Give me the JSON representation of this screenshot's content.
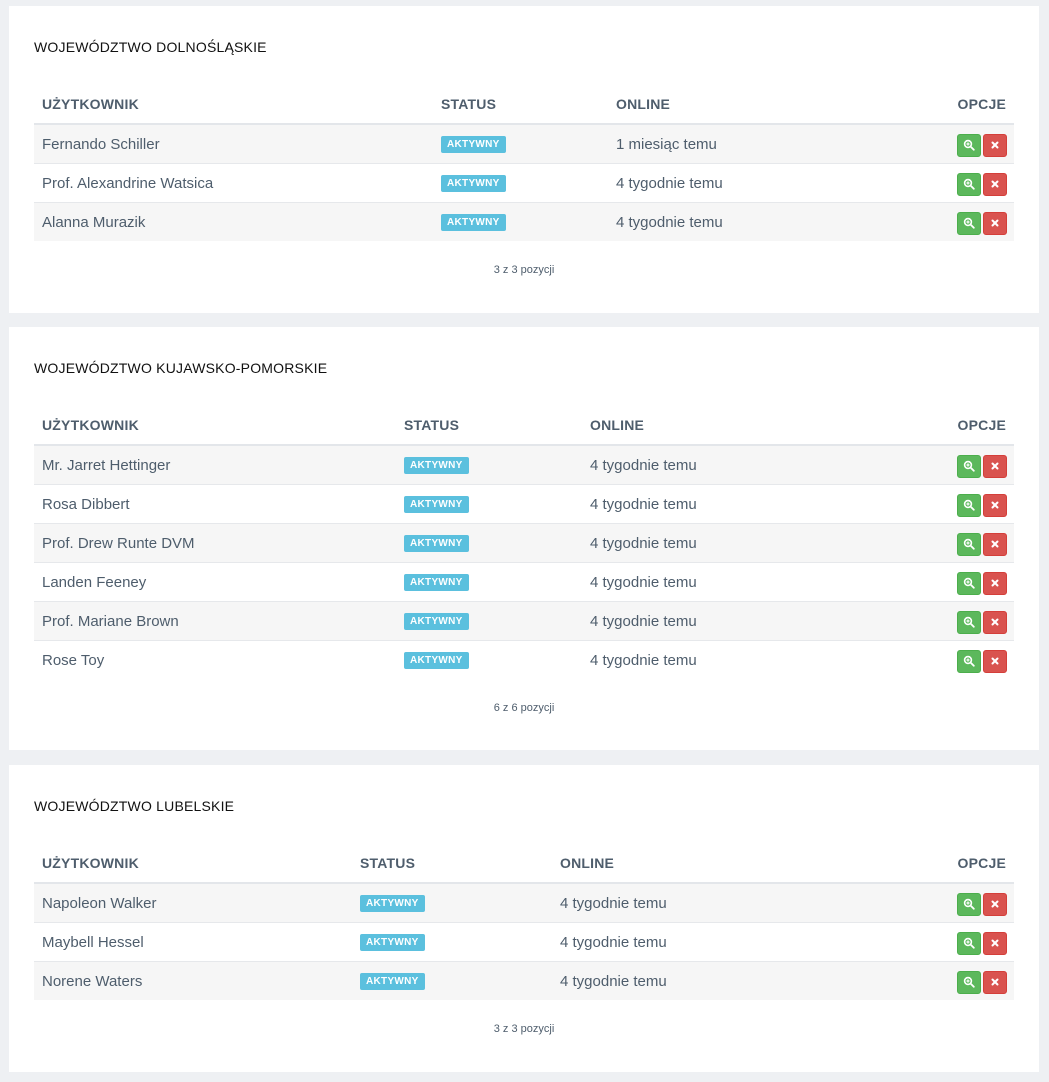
{
  "panels": [
    {
      "title": "WOJEWÓDZTWO DOLNOŚLĄSKIE",
      "headers": {
        "user": "UŻYTKOWNIK",
        "status": "STATUS",
        "online": "ONLINE",
        "options": "OPCJE"
      },
      "rows": [
        {
          "user": "Fernando Schiller",
          "status": "AKTYWNY",
          "online": "1 miesiąc temu"
        },
        {
          "user": "Prof. Alexandrine Watsica",
          "status": "AKTYWNY",
          "online": "4 tygodnie temu"
        },
        {
          "user": "Alanna Murazik",
          "status": "AKTYWNY",
          "online": "4 tygodnie temu"
        }
      ],
      "pagination": "3 z 3 pozycji"
    },
    {
      "title": "WOJEWÓDZTWO KUJAWSKO-POMORSKIE",
      "headers": {
        "user": "UŻYTKOWNIK",
        "status": "STATUS",
        "online": "ONLINE",
        "options": "OPCJE"
      },
      "rows": [
        {
          "user": "Mr. Jarret Hettinger",
          "status": "AKTYWNY",
          "online": "4 tygodnie temu"
        },
        {
          "user": "Rosa Dibbert",
          "status": "AKTYWNY",
          "online": "4 tygodnie temu"
        },
        {
          "user": "Prof. Drew Runte DVM",
          "status": "AKTYWNY",
          "online": "4 tygodnie temu"
        },
        {
          "user": "Landen Feeney",
          "status": "AKTYWNY",
          "online": "4 tygodnie temu"
        },
        {
          "user": "Prof. Mariane Brown",
          "status": "AKTYWNY",
          "online": "4 tygodnie temu"
        },
        {
          "user": "Rose Toy",
          "status": "AKTYWNY",
          "online": "4 tygodnie temu"
        }
      ],
      "pagination": "6 z 6 pozycji"
    },
    {
      "title": "WOJEWÓDZTWO LUBELSKIE",
      "headers": {
        "user": "UŻYTKOWNIK",
        "status": "STATUS",
        "online": "ONLINE",
        "options": "OPCJE"
      },
      "rows": [
        {
          "user": "Napoleon Walker",
          "status": "AKTYWNY",
          "online": "4 tygodnie temu"
        },
        {
          "user": "Maybell Hessel",
          "status": "AKTYWNY",
          "online": "4 tygodnie temu"
        },
        {
          "user": "Norene Waters",
          "status": "AKTYWNY",
          "online": "4 tygodnie temu"
        }
      ],
      "pagination": "3 z 3 pozycji"
    }
  ],
  "icons": {
    "view": "zoom-in-icon",
    "delete": "close-icon"
  },
  "colors": {
    "status_badge": "#5bc0de",
    "view_button": "#5cb85c",
    "delete_button": "#d9534f",
    "page_background": "#eef0f3"
  }
}
